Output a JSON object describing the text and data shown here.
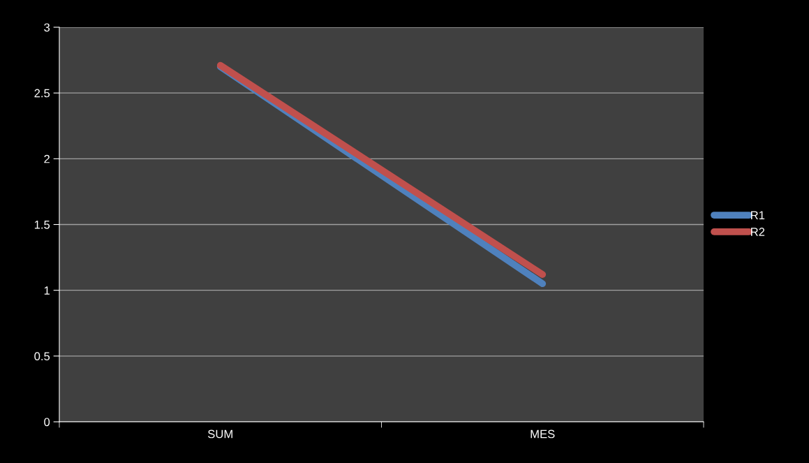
{
  "chart_data": {
    "type": "line",
    "categories": [
      "SUM",
      "MES"
    ],
    "series": [
      {
        "name": "R1",
        "color": "#4f81bd",
        "values": [
          2.7,
          1.05
        ]
      },
      {
        "name": "R2",
        "color": "#c0504d",
        "values": [
          2.71,
          1.12
        ]
      }
    ],
    "ylim": [
      0,
      3
    ],
    "yticks": [
      0,
      0.5,
      1,
      1.5,
      2,
      2.5,
      3
    ],
    "grid": "y",
    "legend": "right",
    "marker": "none",
    "line_style": "solid"
  }
}
